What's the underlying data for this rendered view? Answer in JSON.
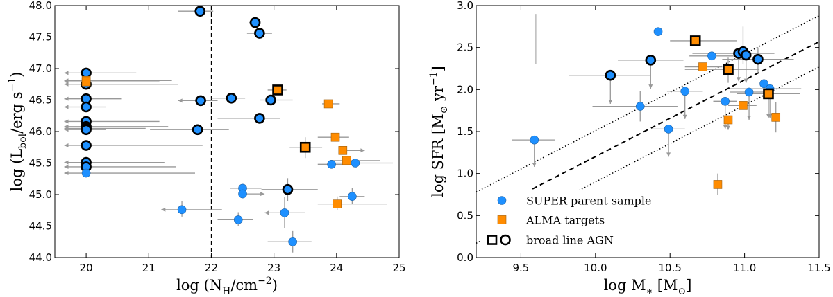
{
  "colors": {
    "blue": "#1e90ff",
    "orange": "#ff8c00",
    "edge": "#000000",
    "err": "#999999"
  },
  "chart_data": [
    {
      "type": "scatter",
      "xlim": [
        19.5,
        25
      ],
      "ylim": [
        44.0,
        48.0
      ],
      "xticks": [
        "20",
        "21",
        "22",
        "23",
        "24",
        "25"
      ],
      "yticks": [
        "44.0",
        "44.5",
        "45.0",
        "45.5",
        "46.0",
        "46.5",
        "47.0",
        "47.5",
        "48.0"
      ],
      "xlabel": {
        "pre": "log (N",
        "sub": "H",
        "mid": "/cm",
        "sup": "−2",
        "post": ")"
      },
      "ylabel": {
        "pre": "log (L",
        "sub": "bol",
        "mid": "/erg s",
        "sup": "−1",
        "post": ")"
      },
      "vline": {
        "x": 22,
        "style": "dashed"
      },
      "points": [
        {
          "x": 20,
          "y": 46.93,
          "m": "c",
          "bl": true,
          "xe": [
            19.65,
            20.8
          ],
          "arrow": "left"
        },
        {
          "x": 20,
          "y": 46.75,
          "m": "c",
          "bl": true,
          "xe": [
            19.65,
            21.47
          ],
          "arrow": "left"
        },
        {
          "x": 20,
          "y": 46.81,
          "m": "s",
          "bl": false,
          "xe": [
            19.65,
            21.37
          ],
          "arrow": "left"
        },
        {
          "x": 20,
          "y": 46.79,
          "m": "s",
          "bl": false,
          "xe": [
            19.65,
            21.17
          ],
          "arrow": "left"
        },
        {
          "x": 20,
          "y": 46.52,
          "m": "c",
          "bl": true,
          "xe": [
            19.65,
            20.57
          ],
          "arrow": "left"
        },
        {
          "x": 20,
          "y": 46.39,
          "m": "c",
          "bl": true,
          "xe": [
            19.65,
            20.32
          ],
          "arrow": "left"
        },
        {
          "x": 20,
          "y": 46.16,
          "m": "c",
          "bl": true,
          "xe": [
            19.65,
            21.17
          ],
          "arrow": "left"
        },
        {
          "x": 20,
          "y": 46.08,
          "m": "c",
          "bl": true,
          "xe": [
            19.65,
            21.31
          ],
          "arrow": "left"
        },
        {
          "x": 20,
          "y": 46.05,
          "m": "c",
          "bl": true,
          "xe": [
            19.65,
            20.95
          ],
          "arrow": "left"
        },
        {
          "x": 20,
          "y": 46.03,
          "m": "c",
          "bl": true,
          "xe": [
            19.65,
            20.32
          ],
          "arrow": "left"
        },
        {
          "x": 20,
          "y": 45.78,
          "m": "c",
          "bl": true,
          "xe": [
            19.65,
            21.86
          ],
          "arrow": "left"
        },
        {
          "x": 20,
          "y": 45.51,
          "m": "c",
          "bl": true,
          "xe": [
            19.65,
            21.25
          ],
          "arrow": "left"
        },
        {
          "x": 20,
          "y": 45.44,
          "m": "c",
          "bl": true,
          "xe": [
            19.65,
            21.43
          ],
          "arrow": "left"
        },
        {
          "x": 20,
          "y": 45.34,
          "m": "c",
          "bl": false,
          "xe": [
            19.65,
            21.74
          ],
          "arrow": "left"
        },
        {
          "x": 21.82,
          "y": 47.91,
          "m": "c",
          "bl": true,
          "xe": [
            21.47,
            22.03
          ]
        },
        {
          "x": 22.7,
          "y": 47.73,
          "m": "c",
          "bl": true,
          "xe": [
            22.6,
            22.78
          ]
        },
        {
          "x": 22.77,
          "y": 47.56,
          "m": "c",
          "bl": true,
          "xe": [
            22.57,
            22.97
          ]
        },
        {
          "x": 21.83,
          "y": 46.49,
          "m": "c",
          "bl": true,
          "xe": [
            21.47,
            22.1
          ],
          "arrow": "left"
        },
        {
          "x": 22.32,
          "y": 46.53,
          "m": "c",
          "bl": true,
          "xe": [
            22.0,
            22.54
          ]
        },
        {
          "x": 22.95,
          "y": 46.5,
          "m": "c",
          "bl": true,
          "xe": [
            22.78,
            23.3
          ]
        },
        {
          "x": 22.77,
          "y": 46.21,
          "m": "c",
          "bl": true,
          "xe": [
            22.1,
            23.1
          ]
        },
        {
          "x": 21.78,
          "y": 46.03,
          "m": "c",
          "bl": true,
          "xe": [
            21.02,
            22.28
          ]
        },
        {
          "x": 23.22,
          "y": 45.08,
          "m": "c",
          "bl": true,
          "xe": [
            22.8,
            23.7
          ],
          "ye": [
            44.9,
            45.26
          ]
        },
        {
          "x": 23.92,
          "y": 45.48,
          "m": "c",
          "bl": false,
          "xe": [
            23.7,
            24.3
          ]
        },
        {
          "x": 24.3,
          "y": 45.5,
          "m": "c",
          "bl": false,
          "xe": [
            23.9,
            24.9
          ]
        },
        {
          "x": 22.5,
          "y": 45.1,
          "m": "c",
          "bl": false,
          "xe": [
            22.3,
            22.8
          ]
        },
        {
          "x": 22.5,
          "y": 45.01,
          "m": "c",
          "bl": false,
          "xe": [
            22.5,
            22.85
          ],
          "arrow": "right"
        },
        {
          "x": 24.25,
          "y": 44.97,
          "m": "c",
          "bl": false,
          "xe": [
            24.05,
            24.45
          ],
          "ye": [
            44.85,
            45.1
          ]
        },
        {
          "x": 21.53,
          "y": 44.76,
          "m": "c",
          "bl": false,
          "xe": [
            21.2,
            22.17
          ],
          "ye": [
            44.65,
            44.9
          ],
          "arrow": "left"
        },
        {
          "x": 23.17,
          "y": 44.71,
          "m": "c",
          "bl": false,
          "xe": [
            22.85,
            23.5
          ],
          "ye": [
            44.47,
            44.96
          ],
          "arrow": "left"
        },
        {
          "x": 22.43,
          "y": 44.6,
          "m": "c",
          "bl": false,
          "xe": [
            22.1,
            22.67
          ],
          "ye": [
            44.5,
            44.72
          ]
        },
        {
          "x": 23.3,
          "y": 44.25,
          "m": "c",
          "bl": false,
          "xe": [
            22.9,
            23.6
          ],
          "ye": [
            44.08,
            44.43
          ]
        },
        {
          "x": 23.06,
          "y": 46.66,
          "m": "s",
          "bl": true,
          "xe": [
            22.9,
            23.2
          ]
        },
        {
          "x": 23.87,
          "y": 46.44,
          "m": "s",
          "bl": false,
          "xe": [
            23.77,
            24.05
          ]
        },
        {
          "x": 23.98,
          "y": 45.91,
          "m": "s",
          "bl": false,
          "xe": [
            23.7,
            24.2
          ]
        },
        {
          "x": 23.5,
          "y": 45.75,
          "m": "s",
          "bl": true,
          "xe": [
            23.25,
            23.77
          ],
          "ye": [
            45.58,
            45.91
          ]
        },
        {
          "x": 24.1,
          "y": 45.7,
          "m": "s",
          "bl": false,
          "xe": [
            24.1,
            24.45
          ],
          "arrow": "right"
        },
        {
          "x": 24.16,
          "y": 45.54,
          "m": "s",
          "bl": false,
          "xe": [
            23.9,
            24.7
          ]
        },
        {
          "x": 24.01,
          "y": 44.85,
          "m": "s",
          "bl": false,
          "xe": [
            23.7,
            24.8
          ],
          "ye": [
            44.75,
            44.97
          ]
        }
      ]
    },
    {
      "type": "scatter",
      "xlim": [
        9.2,
        11.5
      ],
      "ylim": [
        0.0,
        3.0
      ],
      "xticks": [
        "9.5",
        "10.0",
        "10.5",
        "11.0",
        "11.5"
      ],
      "yticks": [
        "0.0",
        "0.5",
        "1.0",
        "1.5",
        "2.0",
        "2.5",
        "3.0"
      ],
      "xlabel": {
        "pre": "log M",
        "sub": "∗",
        "mid": " [M",
        "sub2": "⊙",
        "post": "]"
      },
      "ylabel": {
        "pre": "log SFR [M",
        "sub": "⊙",
        "mid": " yr",
        "sup": "−1",
        "post": "]"
      },
      "lines": [
        {
          "style": "dashed",
          "x": [
            9.23,
            11.5
          ],
          "y": [
            0.5,
            2.57
          ]
        },
        {
          "style": "dotted",
          "x": [
            9.2,
            11.5
          ],
          "y": [
            0.78,
            2.88
          ]
        },
        {
          "style": "dotted",
          "x": [
            9.2,
            11.5
          ],
          "y": [
            0.17,
            2.27
          ]
        }
      ],
      "typical_error": {
        "x": 9.6,
        "y": 2.6,
        "xe": [
          9.3,
          9.9
        ],
        "ye": [
          2.3,
          2.9
        ]
      },
      "legend": {
        "position": "lower-left",
        "entries": [
          "SUPER parent sample",
          "ALMA targets",
          "broad line AGN"
        ]
      },
      "points": [
        {
          "x": 9.59,
          "y": 1.4,
          "m": "c",
          "bl": false,
          "xe": [
            9.44,
            9.73
          ],
          "ye": [
            1.08,
            1.4
          ],
          "arrow": "down"
        },
        {
          "x": 10.42,
          "y": 2.69,
          "m": "c",
          "bl": false
        },
        {
          "x": 10.3,
          "y": 1.8,
          "m": "c",
          "bl": false,
          "xe": [
            9.98,
            10.55
          ],
          "ye": [
            1.62,
            1.98
          ]
        },
        {
          "x": 10.6,
          "y": 1.98,
          "m": "c",
          "bl": false,
          "xe": [
            10.48,
            10.72
          ],
          "ye": [
            1.65,
            1.98
          ],
          "arrow": "down"
        },
        {
          "x": 10.49,
          "y": 1.53,
          "m": "c",
          "bl": false,
          "xe": [
            10.38,
            10.6
          ],
          "ye": [
            1.2,
            1.53
          ],
          "arrow": "down"
        },
        {
          "x": 10.78,
          "y": 2.4,
          "m": "c",
          "bl": false,
          "xe": [
            10.63,
            10.95
          ]
        },
        {
          "x": 10.87,
          "y": 1.86,
          "m": "c",
          "bl": false,
          "xe": [
            10.79,
            10.95
          ],
          "ye": [
            1.53,
            1.86
          ],
          "arrow": "down"
        },
        {
          "x": 11.03,
          "y": 1.97,
          "m": "c",
          "bl": false,
          "xe": [
            10.9,
            11.15
          ],
          "ye": [
            1.64,
            1.97
          ],
          "arrow": "down"
        },
        {
          "x": 11.13,
          "y": 2.07,
          "m": "c",
          "bl": false
        },
        {
          "x": 11.17,
          "y": 2.01,
          "m": "c",
          "bl": false,
          "xe": [
            10.9,
            11.38
          ],
          "ye": [
            1.66,
            2.01
          ],
          "arrow": "down"
        },
        {
          "x": 10.1,
          "y": 2.17,
          "m": "c",
          "bl": true,
          "xe": [
            9.82,
            10.37
          ],
          "ye": [
            1.83,
            2.17
          ],
          "arrow": "down"
        },
        {
          "x": 10.37,
          "y": 2.35,
          "m": "c",
          "bl": true,
          "xe": [
            10.15,
            10.59
          ],
          "ye": [
            2.01,
            2.35
          ],
          "arrow": "down"
        },
        {
          "x": 10.96,
          "y": 2.43,
          "m": "c",
          "bl": true,
          "xe": [
            10.65,
            11.2
          ],
          "ye": [
            2.1,
            2.43
          ],
          "arrow": "down"
        },
        {
          "x": 10.99,
          "y": 2.45,
          "m": "c",
          "bl": true,
          "ye": [
            2.3,
            2.75
          ]
        },
        {
          "x": 11.01,
          "y": 2.41,
          "m": "c",
          "bl": true,
          "ye": [
            2.08,
            2.41
          ],
          "arrow": "down"
        },
        {
          "x": 11.09,
          "y": 2.36,
          "m": "c",
          "bl": true,
          "xe": [
            10.85,
            11.33
          ],
          "ye": [
            2.2,
            2.5
          ]
        },
        {
          "x": 10.67,
          "y": 2.58,
          "m": "s",
          "bl": true,
          "xe": [
            10.5,
            10.95
          ]
        },
        {
          "x": 10.72,
          "y": 2.27,
          "m": "s",
          "bl": false,
          "xe": [
            10.6,
            10.85
          ]
        },
        {
          "x": 10.89,
          "y": 2.24,
          "m": "s",
          "bl": true,
          "xe": [
            10.6,
            11.1
          ],
          "ye": [
            2.08,
            2.38
          ]
        },
        {
          "x": 11.16,
          "y": 1.95,
          "m": "s",
          "bl": true,
          "xe": [
            10.95,
            11.37
          ],
          "ye": [
            1.66,
            1.95
          ],
          "arrow": "down"
        },
        {
          "x": 10.99,
          "y": 1.81,
          "m": "s",
          "bl": false,
          "xe": [
            10.89,
            11.08
          ]
        },
        {
          "x": 10.89,
          "y": 1.64,
          "m": "s",
          "bl": false,
          "ye": [
            1.52,
            1.64
          ],
          "arrow": "down"
        },
        {
          "x": 11.21,
          "y": 1.67,
          "m": "s",
          "bl": false,
          "ye": [
            1.49,
            1.85
          ]
        },
        {
          "x": 10.82,
          "y": 0.87,
          "m": "s",
          "bl": false,
          "ye": [
            0.75,
            1.0
          ]
        }
      ]
    }
  ]
}
